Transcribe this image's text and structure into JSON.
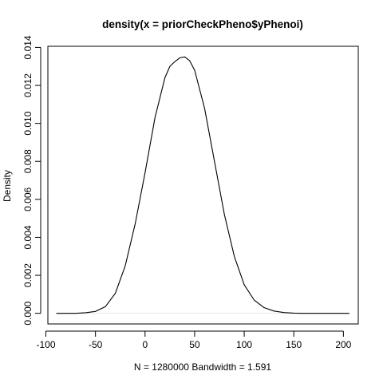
{
  "chart_data": {
    "type": "line",
    "title": "density(x = priorCheckPheno$yPhenoi)",
    "xlabel": "N = 1280000   Bandwidth = 1.591",
    "ylabel": "Density",
    "xlim": [
      -98,
      215
    ],
    "ylim": [
      -0.00056,
      0.01406
    ],
    "x_ticks": [
      -100,
      -50,
      0,
      50,
      100,
      150,
      200
    ],
    "y_ticks": [
      0.0,
      0.002,
      0.004,
      0.006,
      0.008,
      0.01,
      0.012,
      0.014
    ],
    "x_tick_labels": [
      "-100",
      "-50",
      "0",
      "50",
      "100",
      "150",
      "200"
    ],
    "y_tick_labels": [
      "0.000",
      "0.002",
      "0.004",
      "0.006",
      "0.008",
      "0.010",
      "0.012",
      "0.014"
    ],
    "baseline": 0,
    "baseline_color": "#e6e6e6",
    "line_color": "#000000",
    "grid": false,
    "box": true,
    "series": [
      {
        "x": [
          -89.5,
          -70,
          -60,
          -50,
          -40,
          -30,
          -20,
          -10,
          0,
          10,
          20,
          25,
          30,
          35,
          40,
          45,
          50,
          60,
          70,
          80,
          90,
          100,
          110,
          120,
          130,
          140,
          150,
          160,
          180,
          206
        ],
        "y": [
          0.0,
          0.0,
          3e-05,
          0.0001,
          0.00035,
          0.00105,
          0.0025,
          0.0047,
          0.0074,
          0.0103,
          0.0124,
          0.013,
          0.01325,
          0.01345,
          0.0135,
          0.0133,
          0.0128,
          0.0108,
          0.008,
          0.0052,
          0.003,
          0.0015,
          0.0007,
          0.0003,
          0.00012,
          4e-05,
          1e-05,
          0.0,
          0.0,
          0.0
        ]
      }
    ]
  }
}
